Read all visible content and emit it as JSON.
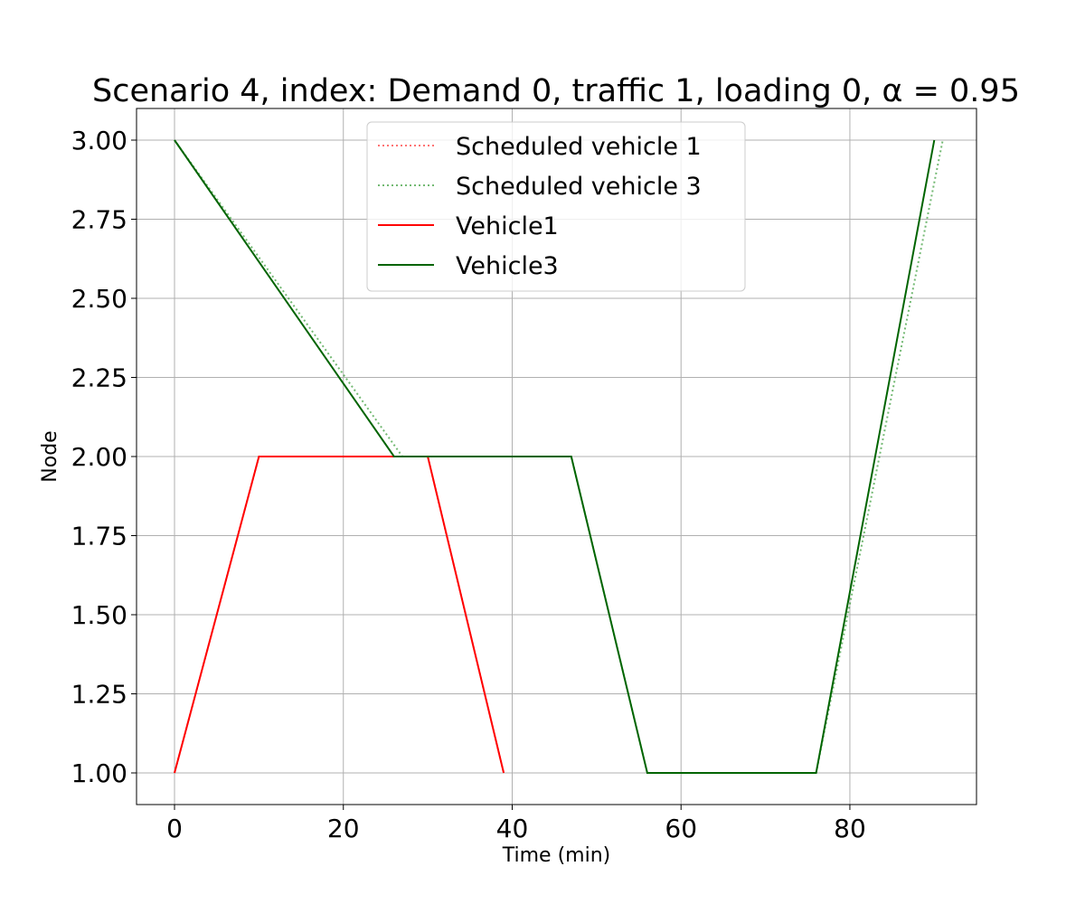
{
  "chart_data": {
    "type": "line",
    "title": "Scenario 4, index: Demand 0, traffic 1, loading 0, α = 0.95",
    "xlabel": "Time (min)",
    "ylabel": "Node",
    "xlim": [
      -4.5,
      95
    ],
    "ylim": [
      0.9,
      3.1
    ],
    "xticks": [
      0,
      20,
      40,
      60,
      80
    ],
    "xtick_labels": [
      "0",
      "20",
      "40",
      "60",
      "80"
    ],
    "yticks": [
      1.0,
      1.25,
      1.5,
      1.75,
      2.0,
      2.25,
      2.5,
      2.75,
      3.0
    ],
    "ytick_labels": [
      "1.00",
      "1.25",
      "1.50",
      "1.75",
      "2.00",
      "2.25",
      "2.50",
      "2.75",
      "3.00"
    ],
    "grid": true,
    "legend_position": "top-center",
    "series": [
      {
        "name": "Scheduled vehicle 1",
        "style": "dotted",
        "color": "#ff0000",
        "opacity": 0.55,
        "x": [
          0,
          10,
          30,
          39
        ],
        "y": [
          1,
          2,
          2,
          1
        ]
      },
      {
        "name": "Scheduled vehicle 3",
        "style": "dotted",
        "color": "#008000",
        "opacity": 0.55,
        "x": [
          0,
          27,
          47,
          56,
          76,
          91
        ],
        "y": [
          3,
          2,
          2,
          1,
          1,
          3
        ]
      },
      {
        "name": "Vehicle1",
        "style": "solid",
        "color": "#ff0000",
        "opacity": 1,
        "x": [
          0,
          10,
          30,
          39
        ],
        "y": [
          1,
          2,
          2,
          1
        ]
      },
      {
        "name": "Vehicle3",
        "style": "solid",
        "color": "#006400",
        "opacity": 1,
        "x": [
          0,
          26,
          47,
          56,
          76,
          90
        ],
        "y": [
          3,
          2,
          2,
          1,
          1,
          3
        ]
      }
    ]
  }
}
